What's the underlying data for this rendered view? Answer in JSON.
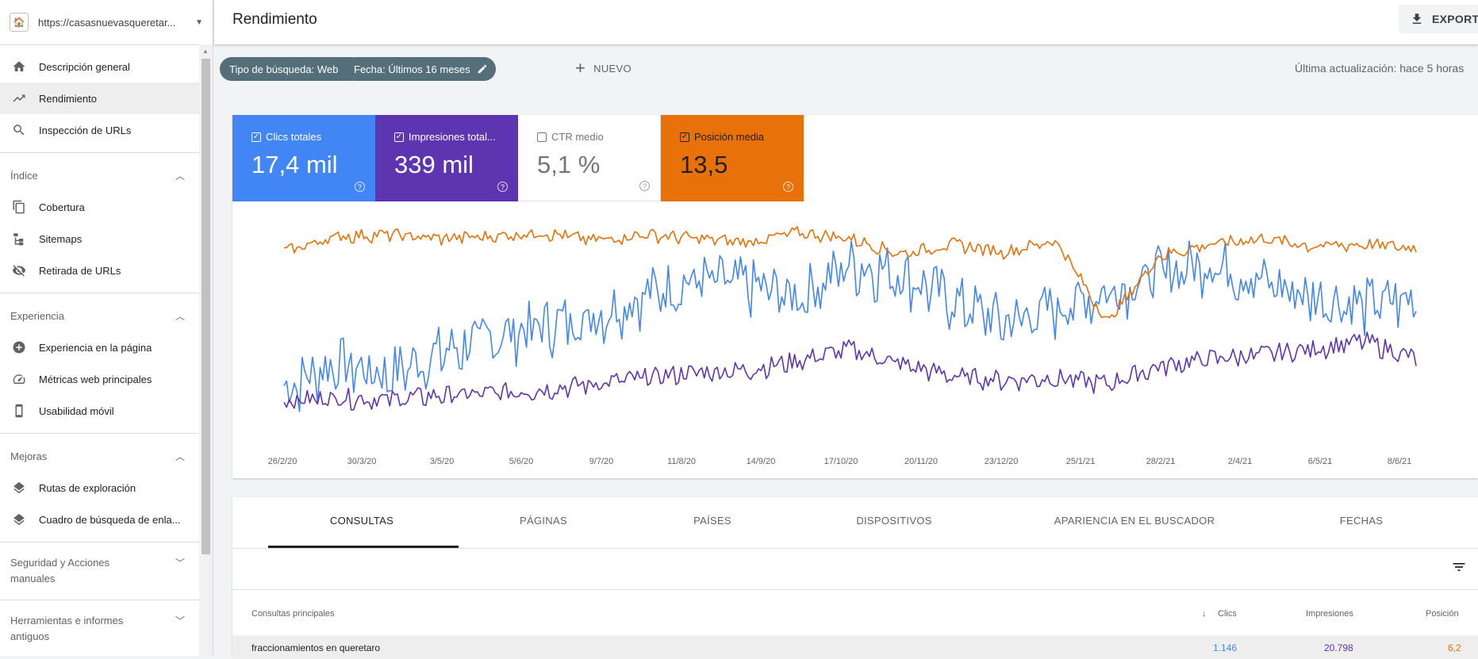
{
  "property": {
    "url": "https://casasnuevasqueretar..."
  },
  "header": {
    "title": "Rendimiento",
    "export_label": "EXPORTAR"
  },
  "sidebar": {
    "items_top": [
      {
        "label": "Descripción general",
        "icon": "home-icon"
      },
      {
        "label": "Rendimiento",
        "icon": "trending-up-icon",
        "active": true
      },
      {
        "label": "Inspección de URLs",
        "icon": "search-icon"
      }
    ],
    "sections": [
      {
        "title": "Índice",
        "items": [
          "Cobertura",
          "Sitemaps",
          "Retirada de URLs"
        ]
      },
      {
        "title": "Experiencia",
        "items": [
          "Experiencia en la página",
          "Métricas web principales",
          "Usabilidad móvil"
        ]
      },
      {
        "title": "Mejoras",
        "items": [
          "Rutas de exploración",
          "Cuadro de búsqueda de enla..."
        ]
      }
    ],
    "collapsed": [
      {
        "title": "Seguridad y Acciones manuales"
      },
      {
        "title": "Herramientas e informes antiguos"
      }
    ]
  },
  "filters": {
    "chip1": "Tipo de búsqueda: Web",
    "chip2": "Fecha: Últimos 16 meses",
    "new_label": "NUEVO",
    "last_update": "Última actualización: hace 5 horas"
  },
  "metrics": {
    "clicks": {
      "label": "Clics totales",
      "value": "17,4 mil",
      "checked": true,
      "color": "#4285f4"
    },
    "impressions": {
      "label": "Impresiones total...",
      "value": "339 mil",
      "checked": true,
      "color": "#5e35b1"
    },
    "ctr": {
      "label": "CTR medio",
      "value": "5,1 %",
      "checked": false
    },
    "position": {
      "label": "Posición media",
      "value": "13,5",
      "checked": true,
      "color": "#e8710a"
    }
  },
  "chart_data": {
    "type": "line",
    "x_ticks": [
      "26/2/20",
      "30/3/20",
      "3/5/20",
      "5/6/20",
      "9/7/20",
      "11/8/20",
      "14/9/20",
      "17/10/20",
      "20/11/20",
      "23/12/20",
      "25/1/21",
      "28/2/21",
      "2/4/21",
      "6/5/21",
      "8/6/21"
    ],
    "x_range": [
      "2020-02-20",
      "2021-06-20"
    ],
    "axes_shown": false,
    "series": [
      {
        "color": "#4285f4",
        "samples_relative": [
          0.15,
          0.28,
          0.22,
          0.33,
          0.41,
          0.47,
          0.52,
          0.63,
          0.71,
          0.68,
          0.62,
          0.79,
          0.74,
          0.6,
          0.49,
          0.56,
          0.65,
          0.74,
          0.8,
          0.7,
          0.62,
          0.58,
          0.61
        ]
      },
      {
        "color": "#5e35b1",
        "samples_relative": [
          0.09,
          0.11,
          0.1,
          0.12,
          0.13,
          0.15,
          0.18,
          0.21,
          0.24,
          0.25,
          0.3,
          0.36,
          0.28,
          0.22,
          0.2,
          0.21,
          0.18,
          0.27,
          0.31,
          0.33,
          0.36,
          0.4,
          0.31
        ]
      },
      {
        "color": "#e8710a",
        "samples_relative": [
          0.86,
          0.94,
          0.95,
          0.93,
          0.94,
          0.96,
          0.92,
          0.95,
          0.93,
          0.91,
          0.96,
          0.93,
          0.85,
          0.9,
          0.86,
          0.92,
          0.5,
          0.84,
          0.9,
          0.93,
          0.89,
          0.9,
          0.88
        ]
      }
    ]
  },
  "tabs": [
    "CONSULTAS",
    "PÁGINAS",
    "PAÍSES",
    "DISPOSITIVOS",
    "APARIENCIA EN EL BUSCADOR",
    "FECHAS"
  ],
  "table": {
    "columns": {
      "query": "Consultas principales",
      "clicks": "Clics",
      "impressions": "Impresiones",
      "position": "Posición"
    },
    "rows": [
      {
        "query": "fraccionamientos en queretaro",
        "clicks": "1.146",
        "impressions": "20.798",
        "position": "6,2"
      }
    ]
  }
}
